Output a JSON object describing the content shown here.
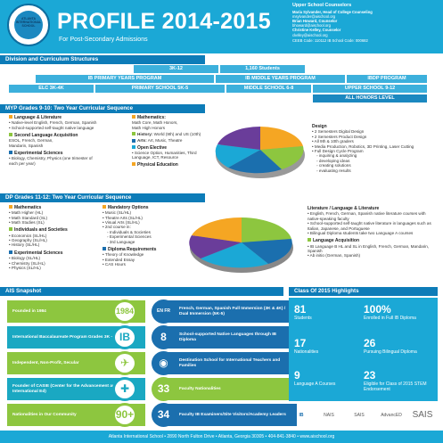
{
  "header": {
    "logo_text": "ATLANTA INTERNATIONAL SCHOOL",
    "title": "PROFILE 2014-2015",
    "subtitle": "For Post-Secondary Admissions",
    "counselors_heading": "Upper School Counselors",
    "counselors": [
      {
        "name": "Maria Sylvander, Head of College Counseling",
        "email": "msylvander@aischool.org"
      },
      {
        "name": "Brian Howard, Counselor",
        "email": "bhoward@aischool.org"
      },
      {
        "name": "Christine Kelley, Counselor",
        "email": "ckelley@aischool.org"
      }
    ],
    "ceeb": "CEEB Code: 110112   IB School Code: 000682"
  },
  "division": {
    "heading": "Division and Curriculum Structures",
    "row1": [
      "3K-12",
      "1,160 Students"
    ],
    "row2": [
      "IB PRIMARY YEARS PROGRAM",
      "IB MIDDLE YEARS PROGRAM",
      "IBDP PROGRAM"
    ],
    "row3": [
      "ELC 3K-4K",
      "PRIMARY SCHOOL 5K-5",
      "MIDDLE SCHOOL 6-8",
      "UPPER SCHOOL 9-12"
    ],
    "row4": "ALL HONORS LEVEL"
  },
  "myp": {
    "heading": "MYP Grades 9-10: Two Year Curricular Sequence",
    "col1": [
      {
        "title": "Language & Literature",
        "items": [
          "Native-level English, French, German, Spanish",
          "School-supported self-taught native language"
        ]
      },
      {
        "title": "Second Language Acquisition",
        "lines": [
          "ESOL, French, German,",
          "Mandarin, Spanish"
        ]
      },
      {
        "title": "Experimental Sciences",
        "items": [
          "Biology, Chemistry, Physics (one trimester of each per year)"
        ]
      }
    ],
    "col2": [
      {
        "title": "Mathematics:",
        "lines": [
          "Math Core, Math Honors,",
          "Math High Honors"
        ]
      },
      {
        "title": "History:",
        "rest": "World (9th) and US (10th)"
      },
      {
        "title": "Arts:",
        "rest": "Art, Music, Theatre"
      },
      {
        "title": "Open Elective",
        "items": [
          "Science Option, Humanities, Third Language, ICT, Resource"
        ]
      },
      {
        "title": "Physical Education"
      }
    ],
    "design": {
      "title": "Design",
      "items": [
        "2 Semesters Digital Design",
        "2 Semesters Product Design",
        "All 9th & 10th graders",
        "Media Production, Robotics, 3D Printing, Laser Cutting",
        "Full Design Cycle Program"
      ],
      "subitems": [
        "inquiring & analyzing",
        "developing ideas",
        "creating solutions",
        "evaluating results"
      ]
    }
  },
  "dp": {
    "heading": "DP Grades 11-12: Two Year Curricular Sequence",
    "col1": [
      {
        "title": "Mathematics",
        "items": [
          "Math Higher (HL)",
          "Math Standard (SL)",
          "Math Studies (SL)"
        ]
      },
      {
        "title": "Individuals and Societies",
        "items": [
          "Economics (SL/HL)",
          "Geography (SL/HL)",
          "History (SL/HL)"
        ]
      },
      {
        "title": "Experimental Sciences",
        "items": [
          "Biology (SL/HL)",
          "Chemistry (SL/HL)",
          "Physics (SL/HL)"
        ]
      }
    ],
    "col2": [
      {
        "title": "Mandatory Options",
        "items": [
          "Music (SL/HL)",
          "Theatre Arts (SL/HL)",
          "Visual Arts (SL/HL)",
          "2nd course in:"
        ],
        "subitems": [
          "Individuals & Societies",
          "Experimental Sciences",
          "3rd Language"
        ]
      },
      {
        "title": "Diploma Requirements",
        "items": [
          "Theory of Knowledge",
          "Extended Essay",
          "CAS Hours"
        ]
      }
    ],
    "col3": [
      {
        "title": "Literature / Language & Literature",
        "items": [
          "English, French, German, Spanish native literature courses with native-speaking faculty",
          "School-supported self-taught native literature in languages such as Italian, Japanese, and Portuguese",
          "Bilingual Diploma students take two Language A courses"
        ]
      },
      {
        "title": "Language Acquisition",
        "items": [
          "IB Language B HL and SL in English, French, German, Mandarin, Spanish",
          "Ab initio (German, Spanish)"
        ]
      }
    ]
  },
  "snapshot": {
    "heading": "AIS Snapshot",
    "rows": [
      {
        "left": "Founded in 1984",
        "num": "1984",
        "icon": "EN FR",
        "right": "French, German, Spanish Full Immersion (3K & 4K) / Dual Immersion (5K-5)"
      },
      {
        "left": "International Baccalaureate Program Grades 3K – 12",
        "num": "IB",
        "icon": "8",
        "right": "School-supported Native Languages through IB Diploma"
      },
      {
        "left": "Independent, Non-Profit, Secular",
        "num": "✈",
        "icon": "◉",
        "right": "Destination School for International Teachers and Families"
      },
      {
        "left": "Founder of CASIE (Center for the Advancement and Study of International Ed)",
        "num": "✚",
        "icon": "33",
        "right": "Faculty Nationalities"
      },
      {
        "left": "Nationalities in Our Community",
        "num": "90+",
        "icon": "34",
        "right": "Faculty IB Examiners/Site Visitors/Academy Leaders"
      }
    ]
  },
  "highlights": {
    "heading": "Class Of 2015 Highlights",
    "items": [
      {
        "num": "81",
        "label": "Students"
      },
      {
        "num": "100%",
        "label": "Enrolled in Full IB Diploma"
      },
      {
        "num": "17",
        "label": "Nationalities"
      },
      {
        "num": "26",
        "label": "Pursuing Bilingual Diploma"
      },
      {
        "num": "9",
        "label": "Language A Courses"
      },
      {
        "num": "23",
        "label": "Eligible for Class of 2015 STEM Endorsement"
      }
    ]
  },
  "footer_logos": [
    "IB",
    "NAIS",
    "SAIS",
    "AdvancED",
    "SAIS"
  ],
  "footer": "Atlanta International School • 2890 North Fulton Drive • Atlanta, Georgia 30305 • 404-841-3840 • www.aischool.org",
  "colors": {
    "primary": "#1ba8d6",
    "dark": "#0d7cb8",
    "green": "#8dc63f",
    "navy": "#1b6fae",
    "orange": "#f5a623"
  }
}
